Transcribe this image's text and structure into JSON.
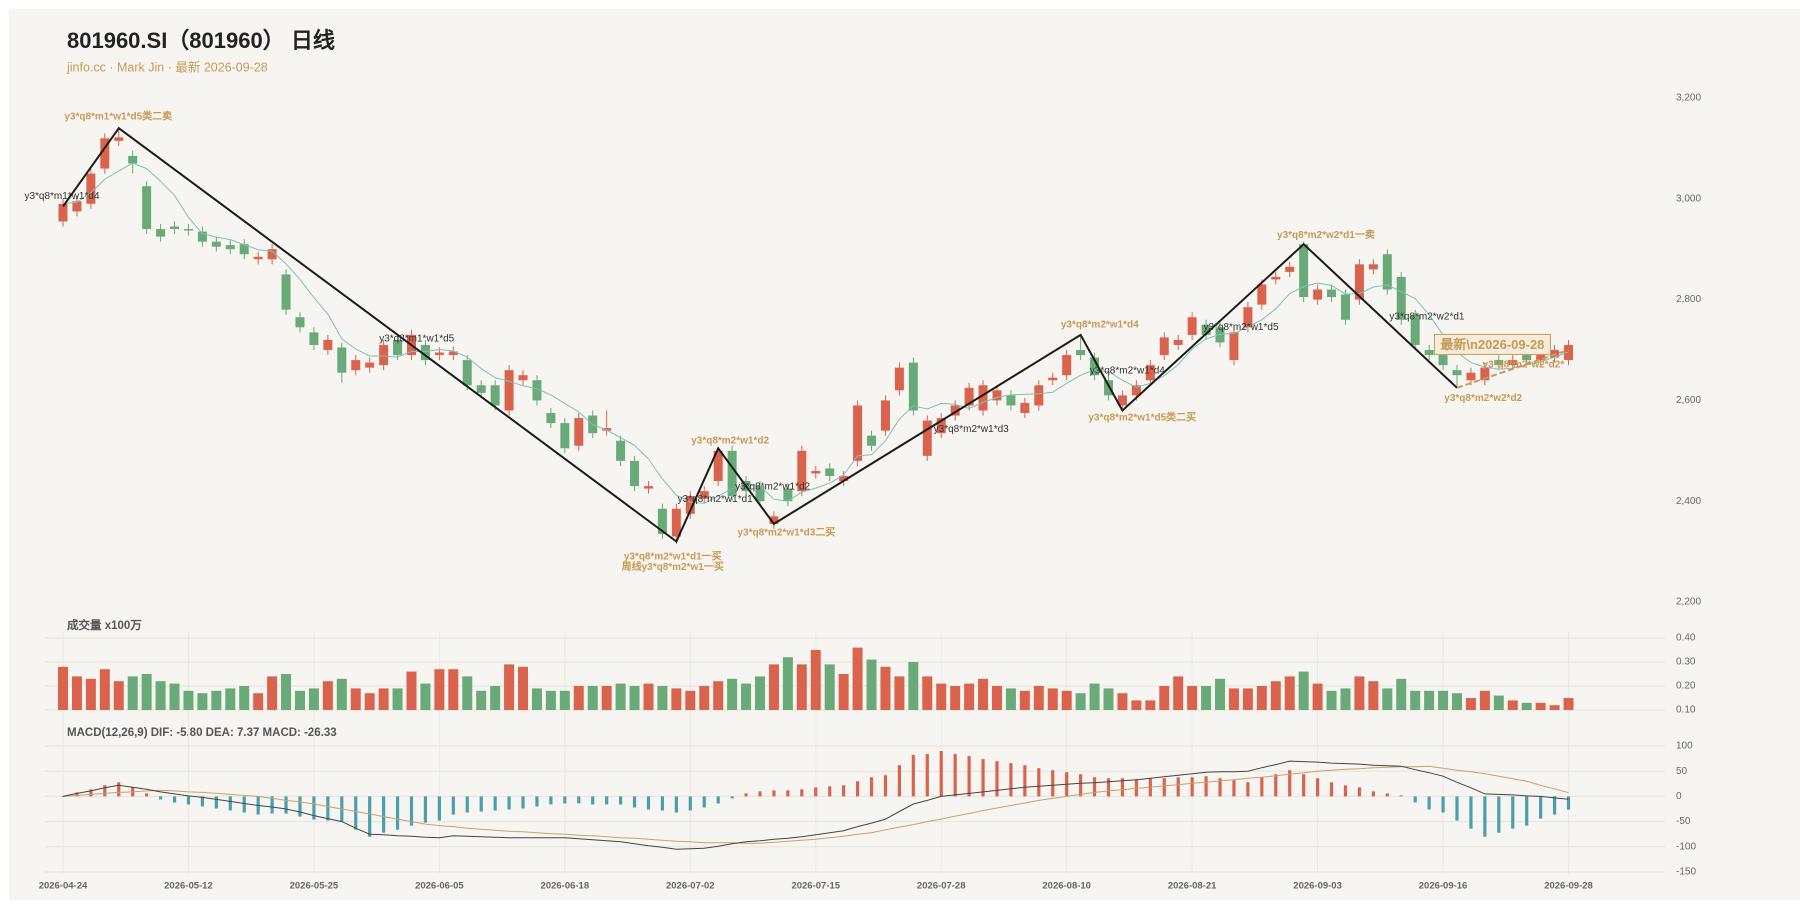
{
  "header": {
    "title": "801960.SI（801960） 日线",
    "subtitle": "jinfo.cc · Mark Jin · 最新 2026-09-28"
  },
  "chart_data": [
    {
      "type": "candlestick",
      "categories": [
        "2026-04-24",
        null,
        null,
        null,
        null,
        null,
        null,
        null,
        null,
        "2026-05-12",
        null,
        null,
        null,
        null,
        null,
        null,
        null,
        null,
        "2026-05-25",
        null,
        null,
        null,
        null,
        null,
        null,
        null,
        null,
        "2026-06-05",
        null,
        null,
        null,
        null,
        null,
        null,
        null,
        null,
        "2026-06-18",
        null,
        null,
        null,
        null,
        null,
        null,
        null,
        null,
        "2026-07-02",
        null,
        null,
        null,
        null,
        null,
        null,
        null,
        null,
        "2026-07-15",
        null,
        null,
        null,
        null,
        null,
        null,
        null,
        null,
        "2026-07-28",
        null,
        null,
        null,
        null,
        null,
        null,
        null,
        null,
        "2026-08-10",
        null,
        null,
        null,
        null,
        null,
        null,
        null,
        null,
        "2026-08-21",
        null,
        null,
        null,
        null,
        null,
        null,
        null,
        null,
        "2026-09-03",
        null,
        null,
        null,
        null,
        null,
        null,
        null,
        null,
        "2026-09-16",
        null,
        null,
        null,
        null,
        null,
        null,
        null,
        null,
        "2026-09-28"
      ],
      "open": [
        2955,
        2975,
        2990,
        3060,
        3115,
        3085,
        3025,
        2940,
        2945,
        2940,
        2935,
        2915,
        2908,
        2910,
        2880,
        2880,
        2850,
        2765,
        2735,
        2700,
        2705,
        2660,
        2665,
        2670,
        2720,
        2690,
        2710,
        2690,
        2690,
        2680,
        2630,
        2630,
        2580,
        2640,
        2640,
        2575,
        2555,
        2510,
        2570,
        2540,
        2520,
        2480,
        2425,
        2385,
        2330,
        2375,
        2405,
        2440,
        2500,
        2440,
        2430,
        2355,
        2425,
        2420,
        2455,
        2465,
        2440,
        2480,
        2530,
        2540,
        2620,
        2675,
        2490,
        2535,
        2570,
        2590,
        2580,
        2600,
        2610,
        2575,
        2590,
        2640,
        2650,
        2700,
        2685,
        2640,
        2590,
        2610,
        2640,
        2690,
        2710,
        2730,
        2750,
        2745,
        2680,
        2745,
        2790,
        2840,
        2855,
        2910,
        2800,
        2820,
        2810,
        2800,
        2860,
        2890,
        2845,
        2770,
        2700,
        2690,
        2660,
        2640,
        2640,
        2680,
        2670,
        2690,
        2680,
        2685,
        2680
      ],
      "close": [
        2990,
        2995,
        3050,
        3120,
        3122,
        3070,
        2940,
        2925,
        2940,
        2937,
        2915,
        2905,
        2900,
        2890,
        2885,
        2900,
        2780,
        2745,
        2710,
        2720,
        2655,
        2680,
        2675,
        2710,
        2690,
        2730,
        2680,
        2695,
        2697,
        2630,
        2615,
        2590,
        2660,
        2650,
        2600,
        2555,
        2505,
        2565,
        2535,
        2545,
        2480,
        2430,
        2430,
        2335,
        2385,
        2410,
        2420,
        2500,
        2410,
        2420,
        2400,
        2370,
        2400,
        2500,
        2460,
        2450,
        2450,
        2590,
        2510,
        2600,
        2665,
        2580,
        2560,
        2565,
        2590,
        2625,
        2630,
        2620,
        2590,
        2595,
        2630,
        2645,
        2690,
        2690,
        2650,
        2610,
        2610,
        2630,
        2670,
        2725,
        2720,
        2765,
        2730,
        2715,
        2735,
        2785,
        2830,
        2845,
        2865,
        2805,
        2820,
        2805,
        2760,
        2870,
        2870,
        2820,
        2760,
        2710,
        2690,
        2670,
        2650,
        2655,
        2665,
        2670,
        2680,
        2680,
        2690,
        2700,
        2710
      ],
      "low": [
        2945,
        2965,
        2980,
        3050,
        3105,
        3050,
        2930,
        2915,
        2930,
        2927,
        2905,
        2895,
        2890,
        2880,
        2870,
        2870,
        2770,
        2735,
        2700,
        2690,
        2635,
        2650,
        2655,
        2660,
        2680,
        2680,
        2670,
        2680,
        2680,
        2620,
        2605,
        2580,
        2570,
        2630,
        2590,
        2545,
        2495,
        2500,
        2525,
        2530,
        2470,
        2420,
        2415,
        2325,
        2315,
        2365,
        2395,
        2430,
        2400,
        2410,
        2390,
        2345,
        2390,
        2410,
        2445,
        2440,
        2430,
        2470,
        2500,
        2530,
        2610,
        2570,
        2480,
        2525,
        2560,
        2580,
        2570,
        2590,
        2580,
        2565,
        2580,
        2630,
        2640,
        2680,
        2640,
        2600,
        2580,
        2600,
        2630,
        2680,
        2700,
        2720,
        2720,
        2705,
        2670,
        2735,
        2780,
        2830,
        2845,
        2795,
        2790,
        2795,
        2750,
        2790,
        2850,
        2810,
        2750,
        2700,
        2680,
        2660,
        2625,
        2630,
        2630,
        2660,
        2660,
        2670,
        2670,
        2675,
        2670
      ],
      "high": [
        3000,
        3005,
        3060,
        3130,
        3140,
        3095,
        3035,
        2950,
        2955,
        2950,
        2945,
        2925,
        2918,
        2920,
        2895,
        2910,
        2860,
        2775,
        2745,
        2730,
        2715,
        2690,
        2685,
        2720,
        2730,
        2740,
        2720,
        2705,
        2707,
        2690,
        2640,
        2640,
        2670,
        2660,
        2650,
        2585,
        2565,
        2575,
        2580,
        2580,
        2530,
        2490,
        2440,
        2395,
        2395,
        2420,
        2430,
        2505,
        2510,
        2450,
        2440,
        2380,
        2435,
        2510,
        2470,
        2475,
        2460,
        2600,
        2540,
        2610,
        2675,
        2685,
        2570,
        2575,
        2600,
        2635,
        2640,
        2630,
        2620,
        2605,
        2640,
        2655,
        2700,
        2730,
        2695,
        2650,
        2620,
        2640,
        2680,
        2735,
        2730,
        2775,
        2760,
        2755,
        2745,
        2795,
        2840,
        2855,
        2875,
        2915,
        2830,
        2830,
        2820,
        2880,
        2880,
        2900,
        2855,
        2780,
        2710,
        2700,
        2670,
        2665,
        2675,
        2690,
        2690,
        2700,
        2700,
        2710,
        2720
      ],
      "up_color": "#d9634d",
      "down_color": "#6aaa78",
      "ma": {
        "color": "#7fbfbc",
        "values": [
          2990,
          2993,
          3012,
          3039,
          3055,
          3071,
          3060,
          3035,
          3007,
          2963,
          2931,
          2924,
          2919,
          2909,
          2899,
          2896,
          2871,
          2840,
          2804,
          2771,
          2722,
          2702,
          2688,
          2688,
          2686,
          2697,
          2697,
          2701,
          2698,
          2686,
          2663,
          2645,
          2638,
          2629,
          2623,
          2611,
          2594,
          2577,
          2552,
          2541,
          2526,
          2511,
          2484,
          2444,
          2412,
          2398,
          2396,
          2410,
          2425,
          2432,
          2430,
          2404,
          2400,
          2418,
          2426,
          2436,
          2452,
          2490,
          2492,
          2520,
          2563,
          2589,
          2583,
          2594,
          2592,
          2584,
          2596,
          2606,
          2611,
          2612,
          2613,
          2616,
          2634,
          2650,
          2661,
          2657,
          2640,
          2626,
          2634,
          2649,
          2671,
          2702,
          2722,
          2731,
          2733,
          2746,
          2760,
          2782,
          2812,
          2826,
          2833,
          2828,
          2811,
          2812,
          2825,
          2829,
          2816,
          2802,
          2770,
          2730,
          2696,
          2675,
          2666,
          2662,
          2664,
          2670,
          2677,
          2686,
          2696
        ]
      },
      "zigzag": {
        "color": "#1a1a1a",
        "index": [
          0,
          4,
          44,
          47,
          51,
          73,
          76,
          89,
          100
        ],
        "values": [
          2985,
          3140,
          2320,
          2505,
          2355,
          2730,
          2580,
          2910,
          2625
        ]
      },
      "zigzag_pending": {
        "color": "#c89a55",
        "index": [
          100,
          108
        ],
        "values": [
          2625,
          2700
        ]
      },
      "annotations": [
        {
          "text": "y3*q8*m1*w1*d5类二卖",
          "color": "#c89a55"
        },
        {
          "text": "y3*q8*m1*w1*d4",
          "color": "#333333"
        },
        {
          "text": "y3*q8*m1*w1*d5",
          "color": "#333333"
        },
        {
          "text": "y3*q8*m2*w1*d2",
          "color": "#c89a55"
        },
        {
          "text": "y3*q8*m2*w1*d1",
          "color": "#333333"
        },
        {
          "text": "y3*q8*m2*w1*d2",
          "color": "#333333"
        },
        {
          "text": "y3*q8*m2*w1*d1一买",
          "color": "#c89a55"
        },
        {
          "text": "周线y3*q8*m2*w1一买",
          "color": "#c89a55"
        },
        {
          "text": "y3*q8*m2*w1*d3二买",
          "color": "#c89a55"
        },
        {
          "text": "y3*q8*m2*w1*d3",
          "color": "#333333"
        },
        {
          "text": "y3*q8*m2*w1*d4",
          "color": "#c89a55"
        },
        {
          "text": "y3*q8*m2*w1*d4",
          "color": "#333333"
        },
        {
          "text": "y3*q8*m2*w1*d5类二买",
          "color": "#c89a55"
        },
        {
          "text": "y3*q8*m2*w1*d5",
          "color": "#333333"
        },
        {
          "text": "y3*q8*m2*w2*d1一卖",
          "color": "#c89a55"
        },
        {
          "text": "y3*q8*m2*w2*d1",
          "color": "#333333"
        },
        {
          "text": "y3*q8*m2*w2*d2",
          "color": "#c89a55"
        },
        {
          "text": "y3*q8*m2*w2*d2*",
          "color": "#c89a55"
        }
      ],
      "latest_label": "最新\\n2026-09-28",
      "ylim": [
        2200,
        3200
      ],
      "yticks": [
        {
          "value": 3200,
          "label": "3,200"
        },
        {
          "value": 3000,
          "label": "3,000"
        },
        {
          "value": 2800,
          "label": "2,800"
        },
        {
          "value": 2600,
          "label": "2,600"
        },
        {
          "value": 2400,
          "label": "2,400"
        },
        {
          "value": 2200,
          "label": "2,200"
        }
      ],
      "grid": false
    },
    {
      "type": "bar",
      "title": "成交量 x100万",
      "values": [
        0.28,
        0.24,
        0.23,
        0.27,
        0.22,
        0.24,
        0.25,
        0.22,
        0.21,
        0.18,
        0.17,
        0.18,
        0.19,
        0.2,
        0.17,
        0.24,
        0.25,
        0.18,
        0.19,
        0.22,
        0.23,
        0.19,
        0.17,
        0.19,
        0.19,
        0.26,
        0.21,
        0.27,
        0.27,
        0.24,
        0.18,
        0.2,
        0.29,
        0.28,
        0.19,
        0.18,
        0.18,
        0.2,
        0.2,
        0.2,
        0.21,
        0.2,
        0.21,
        0.2,
        0.19,
        0.18,
        0.2,
        0.22,
        0.23,
        0.21,
        0.24,
        0.29,
        0.32,
        0.29,
        0.35,
        0.29,
        0.25,
        0.36,
        0.31,
        0.28,
        0.24,
        0.3,
        0.24,
        0.21,
        0.2,
        0.21,
        0.23,
        0.2,
        0.19,
        0.18,
        0.2,
        0.19,
        0.18,
        0.17,
        0.21,
        0.19,
        0.17,
        0.14,
        0.14,
        0.2,
        0.24,
        0.2,
        0.2,
        0.23,
        0.19,
        0.19,
        0.2,
        0.22,
        0.24,
        0.26,
        0.21,
        0.18,
        0.19,
        0.24,
        0.22,
        0.19,
        0.23,
        0.18,
        0.18,
        0.18,
        0.17,
        0.15,
        0.18,
        0.16,
        0.14,
        0.13,
        0.13,
        0.12,
        0.15
      ],
      "ylim": [
        0.1,
        0.4
      ],
      "yticks": [
        {
          "value": 0.4,
          "label": "0.40"
        },
        {
          "value": 0.3,
          "label": "0.30"
        },
        {
          "value": 0.2,
          "label": "0.20"
        },
        {
          "value": 0.1,
          "label": "0.10"
        }
      ],
      "grid": true
    },
    {
      "type": "macd",
      "title": "MACD(12,26,9) DIF: -5.80 DEA: 7.37 MACD: -26.33",
      "dif": {
        "color": "#444444",
        "values": [
          0,
          6,
          11,
          17,
          22,
          18,
          14,
          9,
          5,
          1,
          -2,
          -6,
          -10,
          -14,
          -18,
          -21,
          -25,
          -31,
          -38,
          -44,
          -50,
          -63,
          -75,
          -76,
          -78,
          -79,
          -81,
          -82,
          -78,
          -79,
          -80,
          -81,
          -82,
          -82,
          -82,
          -82,
          -82,
          -84,
          -86,
          -88,
          -90,
          -94,
          -98,
          -101,
          -105,
          -104,
          -103,
          -99,
          -94,
          -90,
          -88,
          -85,
          -83,
          -80,
          -76,
          -72,
          -68,
          -60,
          -53,
          -45,
          -30,
          -15,
          -8,
          0,
          3,
          6,
          9,
          12,
          15,
          18,
          20,
          22,
          24,
          26,
          27,
          29,
          31,
          33,
          36,
          39,
          42,
          45,
          48,
          49,
          49,
          50,
          57,
          63,
          70,
          69,
          68,
          66,
          65,
          64,
          62,
          61,
          60,
          53,
          47,
          40,
          28,
          17,
          5,
          4,
          3,
          1,
          0,
          -3,
          -5.8
        ]
      },
      "dea": {
        "color": "#c9a070",
        "values": [
          0,
          2,
          4,
          6,
          8,
          9,
          11,
          12,
          11,
          9,
          8,
          6,
          4,
          2,
          0,
          -4,
          -8,
          -11,
          -15,
          -20,
          -25,
          -30,
          -35,
          -40,
          -45,
          -50,
          -55,
          -58,
          -60,
          -63,
          -65,
          -67,
          -69,
          -70,
          -72,
          -74,
          -75,
          -77,
          -78,
          -80,
          -82,
          -83,
          -85,
          -87,
          -89,
          -90,
          -92,
          -92,
          -92,
          -93,
          -93,
          -91,
          -89,
          -87,
          -85,
          -82,
          -79,
          -75,
          -72,
          -66,
          -61,
          -56,
          -50,
          -45,
          -39,
          -34,
          -28,
          -23,
          -18,
          -13,
          -8,
          -4,
          0,
          4,
          8,
          11,
          13,
          16,
          18,
          21,
          23,
          26,
          28,
          31,
          33,
          36,
          38,
          41,
          44,
          47,
          50,
          52,
          54,
          55,
          57,
          58,
          59,
          59,
          60,
          56,
          52,
          49,
          45,
          40,
          35,
          30,
          22,
          15,
          7.37
        ]
      },
      "hist": {
        "up_color": "#d9634d",
        "down_color": "#4a9fae",
        "values": [
          0,
          8,
          14,
          22,
          28,
          18,
          6,
          -6,
          -12,
          -16,
          -20,
          -24,
          -28,
          -32,
          -36,
          -34,
          -34,
          -40,
          -46,
          -48,
          -50,
          -66,
          -80,
          -72,
          -66,
          -58,
          -52,
          -48,
          -36,
          -32,
          -30,
          -28,
          -26,
          -24,
          -20,
          -16,
          -14,
          -14,
          -16,
          -16,
          -16,
          -22,
          -26,
          -28,
          -32,
          -28,
          -22,
          -14,
          -4,
          6,
          10,
          12,
          12,
          14,
          18,
          20,
          22,
          30,
          38,
          42,
          62,
          82,
          84,
          90,
          84,
          80,
          74,
          70,
          66,
          62,
          56,
          52,
          48,
          44,
          38,
          36,
          36,
          34,
          36,
          36,
          38,
          38,
          40,
          36,
          32,
          28,
          38,
          44,
          52,
          44,
          36,
          28,
          22,
          18,
          10,
          6,
          2,
          -12,
          -26,
          -32,
          -48,
          -64,
          -80,
          -72,
          -64,
          -58,
          -44,
          -36,
          -26.33
        ]
      },
      "ylim": [
        -150,
        100
      ],
      "yticks": [
        100,
        50,
        0,
        -50,
        -100,
        -150
      ],
      "grid": true
    }
  ]
}
